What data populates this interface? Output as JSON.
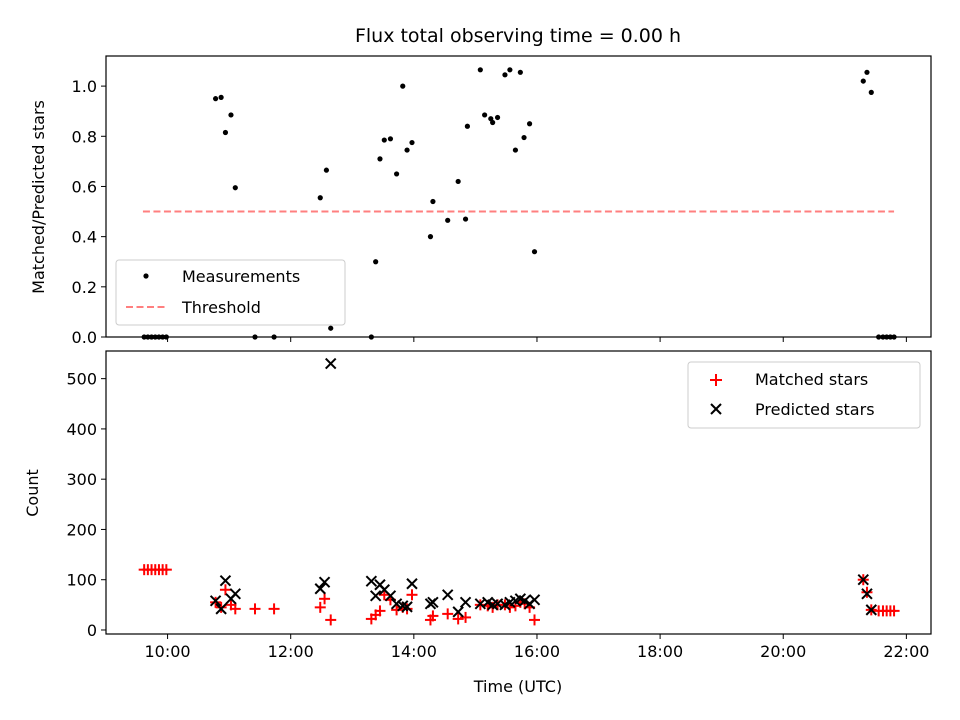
{
  "figure_title": "Flux total observing time = 0.00 h",
  "chart_data": [
    {
      "type": "scatter",
      "title": "Flux total observing time = 0.00 h",
      "xlabel": "",
      "ylabel": "Matched/Predicted stars",
      "xlim": [
        9.0,
        22.4
      ],
      "ylim": [
        0.0,
        1.12
      ],
      "x_ticks": [
        10,
        12,
        14,
        16,
        18,
        20,
        22
      ],
      "x_tick_labels": [
        "",
        "",
        "",
        "",
        "",
        "",
        ""
      ],
      "y_ticks": [
        0.0,
        0.2,
        0.4,
        0.6,
        0.8,
        1.0
      ],
      "y_tick_labels": [
        "0.0",
        "0.2",
        "0.4",
        "0.6",
        "0.8",
        "1.0"
      ],
      "legend_position": "lower-left",
      "series": [
        {
          "name": "Measurements",
          "kind": "scatter",
          "color": "#000000",
          "x": [
            9.62,
            9.68,
            9.74,
            9.8,
            9.86,
            9.92,
            9.98,
            10.78,
            10.87,
            10.94,
            11.03,
            11.1,
            11.42,
            11.73,
            12.48,
            12.58,
            12.65,
            13.31,
            13.38,
            13.45,
            13.52,
            13.62,
            13.72,
            13.82,
            13.89,
            13.97,
            14.27,
            14.31,
            14.55,
            14.72,
            14.84,
            14.87,
            15.08,
            15.15,
            15.25,
            15.28,
            15.36,
            15.48,
            15.56,
            15.65,
            15.73,
            15.79,
            15.88,
            15.96,
            21.3,
            21.36,
            21.43,
            21.55,
            21.62,
            21.68,
            21.74,
            21.8
          ],
          "y": [
            0.0,
            0.0,
            0.0,
            0.0,
            0.0,
            0.0,
            0.0,
            0.95,
            0.955,
            0.815,
            0.885,
            0.595,
            0.0,
            0.0,
            0.555,
            0.665,
            0.035,
            0.0,
            0.3,
            0.71,
            0.785,
            0.79,
            0.65,
            1.0,
            0.745,
            0.775,
            0.4,
            0.54,
            0.465,
            0.62,
            0.47,
            0.84,
            1.065,
            0.885,
            0.87,
            0.855,
            0.875,
            1.045,
            1.065,
            0.745,
            1.055,
            0.795,
            0.85,
            0.34,
            1.02,
            1.055,
            0.975,
            0.0,
            0.0,
            0.0,
            0.0,
            0.0
          ]
        },
        {
          "name": "Threshold",
          "kind": "line",
          "style": "dashed",
          "color": "#ff7f7f",
          "x": [
            9.6,
            21.8
          ],
          "y": [
            0.5,
            0.5
          ]
        }
      ]
    },
    {
      "type": "scatter",
      "title": "",
      "xlabel": "Time (UTC)",
      "ylabel": "Count",
      "xlim": [
        9.0,
        22.4
      ],
      "ylim": [
        -8,
        555
      ],
      "x_ticks": [
        10,
        12,
        14,
        16,
        18,
        20,
        22
      ],
      "x_tick_labels": [
        "10:00",
        "12:00",
        "14:00",
        "16:00",
        "18:00",
        "20:00",
        "22:00"
      ],
      "y_ticks": [
        0,
        100,
        200,
        300,
        400,
        500
      ],
      "y_tick_labels": [
        "0",
        "100",
        "200",
        "300",
        "400",
        "500"
      ],
      "legend_position": "top-right",
      "series": [
        {
          "name": "Matched stars",
          "marker": "plus",
          "color": "#ff0000",
          "x": [
            9.62,
            9.68,
            9.74,
            9.8,
            9.86,
            9.92,
            9.98,
            10.78,
            10.87,
            10.94,
            11.03,
            11.1,
            11.42,
            11.73,
            12.48,
            12.55,
            12.65,
            13.31,
            13.38,
            13.45,
            13.52,
            13.62,
            13.72,
            13.82,
            13.89,
            13.97,
            14.27,
            14.31,
            14.55,
            14.72,
            14.84,
            15.08,
            15.2,
            15.28,
            15.36,
            15.48,
            15.56,
            15.65,
            15.73,
            15.8,
            15.88,
            15.96,
            21.3,
            21.36,
            21.43,
            21.55,
            21.62,
            21.68,
            21.74,
            21.8
          ],
          "y": [
            120,
            120,
            120,
            120,
            120,
            120,
            120,
            55,
            45,
            80,
            50,
            42,
            42,
            42,
            45,
            62,
            20,
            22,
            30,
            38,
            70,
            60,
            40,
            45,
            42,
            70,
            20,
            28,
            32,
            22,
            25,
            50,
            48,
            45,
            50,
            50,
            45,
            48,
            55,
            52,
            45,
            20,
            100,
            75,
            40,
            38,
            38,
            38,
            38,
            38
          ]
        },
        {
          "name": "Predicted stars",
          "marker": "x",
          "color": "#000000",
          "x": [
            10.78,
            10.87,
            10.94,
            11.03,
            11.1,
            12.48,
            12.55,
            12.65,
            13.31,
            13.38,
            13.45,
            13.52,
            13.62,
            13.72,
            13.82,
            13.89,
            13.97,
            14.27,
            14.31,
            14.55,
            14.72,
            14.84,
            15.08,
            15.2,
            15.28,
            15.36,
            15.48,
            15.56,
            15.65,
            15.73,
            15.8,
            15.88,
            15.96,
            21.3,
            21.36,
            21.43
          ],
          "y": [
            58,
            42,
            98,
            62,
            72,
            82,
            95,
            530,
            97,
            68,
            90,
            80,
            68,
            52,
            48,
            46,
            92,
            52,
            55,
            70,
            36,
            55,
            52,
            55,
            50,
            52,
            50,
            55,
            58,
            62,
            58,
            52,
            60,
            100,
            72,
            40
          ]
        }
      ]
    }
  ]
}
